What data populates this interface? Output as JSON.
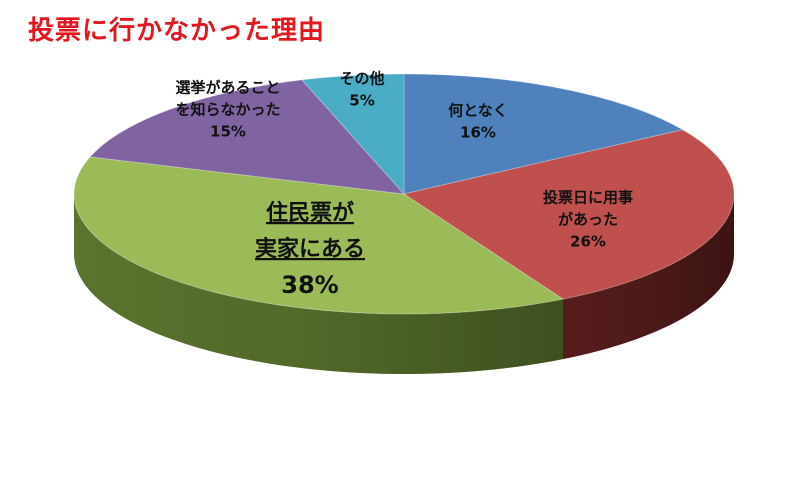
{
  "title": "投票に行かなかった理由",
  "chart_data": {
    "type": "pie",
    "title": "投票に行かなかった理由",
    "slices": [
      {
        "label_lines": [
          "何となく"
        ],
        "value": 16,
        "value_label": "16%",
        "color": "#4f81bd",
        "side_color": "#2f4f7a"
      },
      {
        "label_lines": [
          "投票日に用事",
          "があった"
        ],
        "value": 26,
        "value_label": "26%",
        "color": "#c0504d",
        "side_color": "#5a1e1c"
      },
      {
        "label_lines": [
          "住民票が",
          "実家にある"
        ],
        "value": 38,
        "value_label": "38%",
        "color": "#9bbb59",
        "side_color": "#5f7a30",
        "emphasis": true
      },
      {
        "label_lines": [
          "選挙があること",
          "を知らなかった"
        ],
        "value": 15,
        "value_label": "15%",
        "color": "#8064a2",
        "side_color": "#4a3863"
      },
      {
        "label_lines": [
          "その他"
        ],
        "value": 5,
        "value_label": "5%",
        "color": "#4bacc6",
        "side_color": "#2b6f80"
      }
    ]
  }
}
